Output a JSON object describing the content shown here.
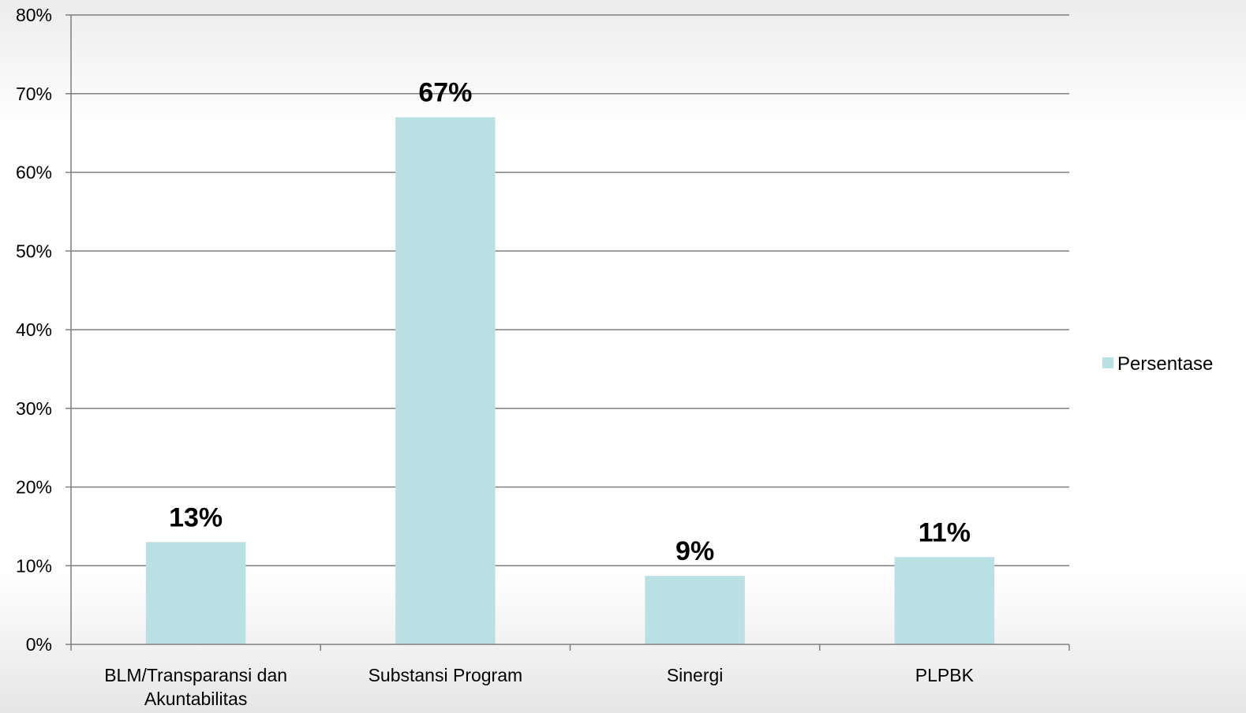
{
  "chart_data": {
    "type": "bar",
    "categories": [
      [
        "BLM/Transparansi dan",
        "Akuntabilitas"
      ],
      [
        "Substansi Program"
      ],
      [
        "Sinergi"
      ],
      [
        "PLPBK"
      ]
    ],
    "series": [
      {
        "name": "Persentase",
        "values": [
          13,
          67,
          8.7,
          11.1
        ],
        "data_labels": [
          "13%",
          "67%",
          "9%",
          "11%"
        ],
        "color": "#b9e0e3"
      }
    ],
    "ylim": [
      0,
      80
    ],
    "yticks": [
      0,
      10,
      20,
      30,
      40,
      50,
      60,
      70,
      80
    ],
    "ytick_labels": [
      "0%",
      "10%",
      "20%",
      "30%",
      "40%",
      "50%",
      "60%",
      "70%",
      "80%"
    ],
    "grid": true,
    "legend": {
      "position": "right",
      "entries": [
        "Persentase"
      ]
    },
    "colors": {
      "bar": "#b9e0e3",
      "grid": "#7f7f7f",
      "axis": "#7f7f7f"
    }
  }
}
